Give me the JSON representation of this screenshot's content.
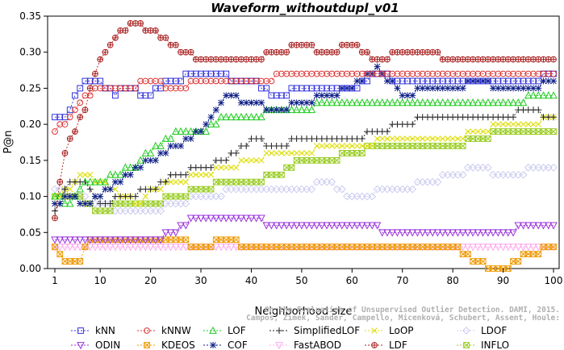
{
  "chart_data": {
    "type": "line",
    "title": "Waveform_withoutdupl_v01",
    "xlabel": "Neighborhood size",
    "ylabel": "P@n",
    "xlim": [
      0,
      100
    ],
    "ylim": [
      0,
      0.35
    ],
    "x_ticks": [
      1,
      10,
      20,
      30,
      40,
      50,
      60,
      70,
      80,
      90,
      100
    ],
    "y_ticks": [
      "0.00",
      "0.05",
      "0.10",
      "0.15",
      "0.20",
      "0.25",
      "0.30",
      "0.35"
    ],
    "grid": false,
    "legend_position": "bottom",
    "watermark": [
      "Campos, Zimek, Sander, Campello, Micenková, Schubert, Assent, Houle:",
      "On the Evaluation of Unsupervised Outlier Detection. DAMI, 2015."
    ],
    "series": [
      {
        "name": "kNN",
        "color": "#3333dd",
        "marker": "square",
        "knots": [
          [
            1,
            0.21
          ],
          [
            3,
            0.21
          ],
          [
            5,
            0.24
          ],
          [
            7,
            0.26
          ],
          [
            10,
            0.26
          ],
          [
            13,
            0.24
          ],
          [
            15,
            0.25
          ],
          [
            20,
            0.24
          ],
          [
            23,
            0.26
          ],
          [
            30,
            0.27
          ],
          [
            40,
            0.26
          ],
          [
            45,
            0.24
          ],
          [
            50,
            0.25
          ],
          [
            60,
            0.25
          ],
          [
            65,
            0.27
          ],
          [
            70,
            0.26
          ],
          [
            80,
            0.26
          ],
          [
            85,
            0.26
          ],
          [
            90,
            0.26
          ],
          [
            95,
            0.26
          ],
          [
            100,
            0.27
          ]
        ]
      },
      {
        "name": "kNNW",
        "color": "#dd3333",
        "marker": "circle",
        "knots": [
          [
            1,
            0.19
          ],
          [
            4,
            0.21
          ],
          [
            7,
            0.24
          ],
          [
            10,
            0.25
          ],
          [
            15,
            0.25
          ],
          [
            20,
            0.26
          ],
          [
            25,
            0.25
          ],
          [
            30,
            0.26
          ],
          [
            40,
            0.26
          ],
          [
            50,
            0.27
          ],
          [
            60,
            0.27
          ],
          [
            70,
            0.27
          ],
          [
            80,
            0.27
          ],
          [
            90,
            0.27
          ],
          [
            100,
            0.27
          ]
        ]
      },
      {
        "name": "LOF",
        "color": "#22cc22",
        "marker": "triangle-up",
        "knots": [
          [
            1,
            0.1
          ],
          [
            4,
            0.09
          ],
          [
            7,
            0.12
          ],
          [
            10,
            0.12
          ],
          [
            14,
            0.13
          ],
          [
            18,
            0.15
          ],
          [
            22,
            0.17
          ],
          [
            26,
            0.19
          ],
          [
            30,
            0.19
          ],
          [
            35,
            0.21
          ],
          [
            40,
            0.21
          ],
          [
            45,
            0.22
          ],
          [
            50,
            0.22
          ],
          [
            55,
            0.23
          ],
          [
            60,
            0.23
          ],
          [
            70,
            0.23
          ],
          [
            80,
            0.23
          ],
          [
            90,
            0.23
          ],
          [
            100,
            0.24
          ]
        ]
      },
      {
        "name": "SimplifiedLOF",
        "color": "#222222",
        "marker": "plus",
        "knots": [
          [
            1,
            0.08
          ],
          [
            4,
            0.12
          ],
          [
            7,
            0.12
          ],
          [
            10,
            0.09
          ],
          [
            15,
            0.1
          ],
          [
            20,
            0.11
          ],
          [
            25,
            0.13
          ],
          [
            30,
            0.14
          ],
          [
            35,
            0.15
          ],
          [
            40,
            0.18
          ],
          [
            45,
            0.17
          ],
          [
            50,
            0.18
          ],
          [
            55,
            0.18
          ],
          [
            60,
            0.18
          ],
          [
            65,
            0.19
          ],
          [
            70,
            0.2
          ],
          [
            75,
            0.21
          ],
          [
            80,
            0.21
          ],
          [
            85,
            0.21
          ],
          [
            90,
            0.21
          ],
          [
            95,
            0.22
          ],
          [
            100,
            0.21
          ]
        ]
      },
      {
        "name": "LoOP",
        "color": "#dddd00",
        "marker": "x",
        "knots": [
          [
            1,
            0.09
          ],
          [
            6,
            0.13
          ],
          [
            10,
            0.12
          ],
          [
            14,
            0.1
          ],
          [
            18,
            0.09
          ],
          [
            20,
            0.11
          ],
          [
            25,
            0.12
          ],
          [
            30,
            0.13
          ],
          [
            35,
            0.14
          ],
          [
            40,
            0.15
          ],
          [
            45,
            0.16
          ],
          [
            50,
            0.16
          ],
          [
            55,
            0.17
          ],
          [
            60,
            0.17
          ],
          [
            70,
            0.18
          ],
          [
            80,
            0.18
          ],
          [
            85,
            0.19
          ],
          [
            90,
            0.2
          ],
          [
            95,
            0.2
          ],
          [
            100,
            0.21
          ]
        ]
      },
      {
        "name": "LDOF",
        "color": "#ccccf0",
        "marker": "diamond",
        "knots": [
          [
            1,
            0.11
          ],
          [
            5,
            0.1
          ],
          [
            10,
            0.09
          ],
          [
            15,
            0.08
          ],
          [
            20,
            0.08
          ],
          [
            30,
            0.1
          ],
          [
            40,
            0.11
          ],
          [
            50,
            0.11
          ],
          [
            55,
            0.12
          ],
          [
            60,
            0.1
          ],
          [
            70,
            0.11
          ],
          [
            80,
            0.13
          ],
          [
            85,
            0.14
          ],
          [
            90,
            0.13
          ],
          [
            100,
            0.14
          ]
        ]
      },
      {
        "name": "ODIN",
        "color": "#9933dd",
        "marker": "triangle-down",
        "knots": [
          [
            1,
            0.04
          ],
          [
            3,
            0.035
          ],
          [
            5,
            0.04
          ],
          [
            10,
            0.035
          ],
          [
            15,
            0.04
          ],
          [
            20,
            0.04
          ],
          [
            25,
            0.05
          ],
          [
            28,
            0.07
          ],
          [
            32,
            0.07
          ],
          [
            36,
            0.07
          ],
          [
            40,
            0.07
          ],
          [
            45,
            0.06
          ],
          [
            50,
            0.06
          ],
          [
            55,
            0.06
          ],
          [
            60,
            0.06
          ],
          [
            70,
            0.05
          ],
          [
            80,
            0.05
          ],
          [
            85,
            0.05
          ],
          [
            90,
            0.05
          ],
          [
            95,
            0.06
          ],
          [
            100,
            0.06
          ]
        ]
      },
      {
        "name": "KDEOS",
        "color": "#ee9900",
        "marker": "square-x",
        "knots": [
          [
            1,
            0.03
          ],
          [
            3,
            0.01
          ],
          [
            6,
            0.01
          ],
          [
            8,
            0.04
          ],
          [
            10,
            0.04
          ],
          [
            15,
            0.04
          ],
          [
            20,
            0.04
          ],
          [
            25,
            0.04
          ],
          [
            30,
            0.03
          ],
          [
            35,
            0.04
          ],
          [
            40,
            0.03
          ],
          [
            50,
            0.03
          ],
          [
            55,
            0.03
          ],
          [
            60,
            0.03
          ],
          [
            70,
            0.03
          ],
          [
            75,
            0.03
          ],
          [
            80,
            0.03
          ],
          [
            85,
            0.01
          ],
          [
            88,
            0.0
          ],
          [
            90,
            0.0
          ],
          [
            95,
            0.02
          ],
          [
            100,
            0.03
          ]
        ]
      },
      {
        "name": "COF",
        "color": "#112288",
        "marker": "star",
        "knots": [
          [
            1,
            0.09
          ],
          [
            4,
            0.1
          ],
          [
            7,
            0.09
          ],
          [
            10,
            0.1
          ],
          [
            15,
            0.13
          ],
          [
            20,
            0.15
          ],
          [
            25,
            0.17
          ],
          [
            30,
            0.19
          ],
          [
            35,
            0.24
          ],
          [
            40,
            0.23
          ],
          [
            45,
            0.22
          ],
          [
            50,
            0.23
          ],
          [
            55,
            0.24
          ],
          [
            60,
            0.25
          ],
          [
            65,
            0.28
          ],
          [
            70,
            0.24
          ],
          [
            75,
            0.25
          ],
          [
            80,
            0.25
          ],
          [
            85,
            0.26
          ],
          [
            90,
            0.25
          ],
          [
            95,
            0.25
          ],
          [
            100,
            0.26
          ]
        ]
      },
      {
        "name": "FastABOD",
        "color": "#ffaaee",
        "marker": "triangle-down-pink",
        "knots": [
          [
            1,
            0.03
          ],
          [
            5,
            0.03
          ],
          [
            10,
            0.03
          ],
          [
            20,
            0.03
          ],
          [
            30,
            0.03
          ],
          [
            40,
            0.03
          ],
          [
            50,
            0.03
          ],
          [
            60,
            0.03
          ],
          [
            70,
            0.03
          ],
          [
            80,
            0.03
          ],
          [
            90,
            0.03
          ],
          [
            100,
            0.03
          ]
        ]
      },
      {
        "name": "LDF",
        "color": "#aa2222",
        "marker": "circle-plus",
        "knots": [
          [
            1,
            0.07
          ],
          [
            3,
            0.16
          ],
          [
            5,
            0.19
          ],
          [
            7,
            0.22
          ],
          [
            9,
            0.27
          ],
          [
            11,
            0.3
          ],
          [
            13,
            0.32
          ],
          [
            17,
            0.34
          ],
          [
            20,
            0.33
          ],
          [
            23,
            0.32
          ],
          [
            26,
            0.3
          ],
          [
            30,
            0.29
          ],
          [
            35,
            0.29
          ],
          [
            40,
            0.29
          ],
          [
            45,
            0.3
          ],
          [
            50,
            0.31
          ],
          [
            55,
            0.3
          ],
          [
            60,
            0.31
          ],
          [
            65,
            0.29
          ],
          [
            70,
            0.3
          ],
          [
            75,
            0.3
          ],
          [
            80,
            0.29
          ],
          [
            85,
            0.29
          ],
          [
            90,
            0.29
          ],
          [
            95,
            0.29
          ],
          [
            100,
            0.29
          ]
        ]
      },
      {
        "name": "INFLO",
        "color": "#99cc22",
        "marker": "hourglass",
        "knots": [
          [
            1,
            0.1
          ],
          [
            5,
            0.1
          ],
          [
            10,
            0.08
          ],
          [
            15,
            0.09
          ],
          [
            20,
            0.09
          ],
          [
            25,
            0.1
          ],
          [
            30,
            0.11
          ],
          [
            35,
            0.12
          ],
          [
            40,
            0.12
          ],
          [
            45,
            0.13
          ],
          [
            50,
            0.15
          ],
          [
            55,
            0.15
          ],
          [
            60,
            0.16
          ],
          [
            65,
            0.17
          ],
          [
            70,
            0.17
          ],
          [
            75,
            0.17
          ],
          [
            80,
            0.17
          ],
          [
            85,
            0.18
          ],
          [
            90,
            0.19
          ],
          [
            95,
            0.19
          ],
          [
            100,
            0.19
          ]
        ]
      }
    ]
  }
}
